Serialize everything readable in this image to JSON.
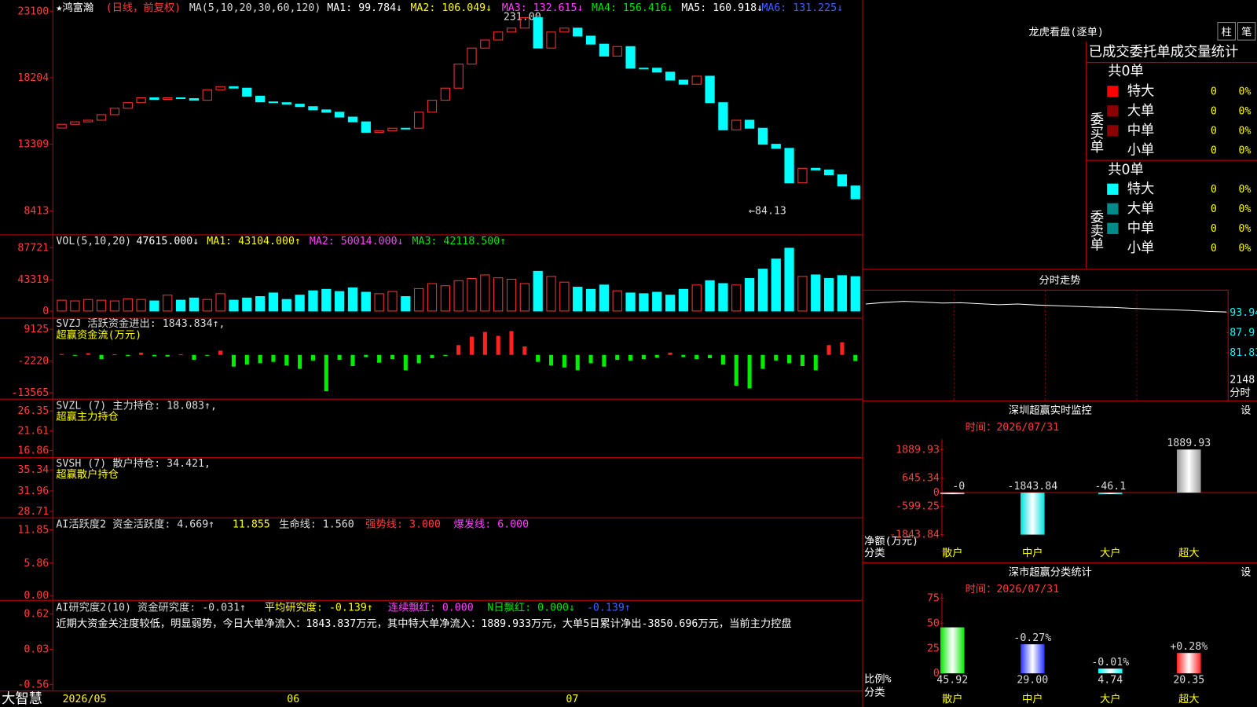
{
  "header": {
    "name": "★鸿富瀚",
    "mode": "(日线，前复权)",
    "ma_params": "MA(5,10,20,30,60,120)",
    "ma": [
      "MA1: 99.784↓",
      "MA2: 106.049↓",
      "MA3: 132.615↓",
      "MA4: 156.416↓",
      "MA5: 160.918↓",
      "MA6: 131.225↓"
    ]
  },
  "price_chart": {
    "ylim": [
      6700,
      23810
    ],
    "yticks": [
      23100,
      18204,
      13309,
      8413
    ],
    "up_color": "#ff3232",
    "down_color": "#00ffff",
    "open": [
      14500,
      14780,
      14960,
      15080,
      15490,
      15960,
      16370,
      16730,
      16610,
      16730,
      16670,
      16550,
      17320,
      17550,
      17440,
      16850,
      16430,
      16370,
      16260,
      16080,
      15840,
      15670,
      15310,
      14960,
      14190,
      14310,
      14490,
      14490,
      15670,
      16550,
      17440,
      19210,
      20390,
      20980,
      21570,
      21860,
      22630,
      20390,
      21570,
      21860,
      21270,
      20680,
      19800,
      20500,
      18910,
      18910,
      18620,
      18030,
      17730,
      18320,
      16370,
      14370,
      15080,
      14490,
      13310,
      13010,
      10470,
      11540,
      11420,
      11060,
      10240
    ],
    "close": [
      14780,
      14960,
      15080,
      15490,
      15960,
      16370,
      16730,
      16610,
      16730,
      16670,
      16550,
      17320,
      17550,
      17440,
      16850,
      16430,
      16370,
      16260,
      16080,
      15840,
      15670,
      15310,
      14960,
      14190,
      14310,
      14490,
      14490,
      15670,
      16550,
      17440,
      19210,
      20390,
      20980,
      21570,
      21860,
      22630,
      20390,
      21570,
      21860,
      21270,
      20680,
      19800,
      20500,
      18910,
      18910,
      18620,
      18030,
      17730,
      18320,
      16370,
      14370,
      15080,
      14490,
      13310,
      13010,
      10470,
      11540,
      11420,
      11060,
      10240,
      9290
    ],
    "annotations": [
      "231.00",
      "←84.13"
    ]
  },
  "volume": {
    "header": [
      "VOL(5,10,20)",
      "47615.000↓",
      "MA1: 43104.000↑",
      "MA2: 50014.000↓",
      "MA3: 42118.500↑"
    ],
    "ylim": [
      0,
      104340
    ],
    "yticks": [
      87721,
      43319,
      0
    ],
    "values": [
      15000,
      14000,
      16000,
      15000,
      14000,
      17000,
      16000,
      14000,
      22000,
      15000,
      18000,
      16000,
      24000,
      15000,
      18000,
      20000,
      25000,
      16000,
      22000,
      28000,
      30000,
      27000,
      32000,
      26000,
      24000,
      27000,
      20000,
      31000,
      38000,
      35000,
      42000,
      45000,
      50000,
      46000,
      44000,
      38000,
      55000,
      48000,
      40000,
      33000,
      30000,
      36000,
      28000,
      25000,
      24000,
      26000,
      22000,
      30000,
      36000,
      42000,
      38000,
      36000,
      45000,
      58000,
      72000,
      87000,
      48000,
      50000,
      45000,
      49000,
      47615
    ]
  },
  "svzj": {
    "header": [
      "SVZJ  活跃资金进出: 1843.834↑,",
      "超赢资金流(万元)"
    ],
    "ylim": [
      -15550,
      12810
    ],
    "yticks": [
      9125,
      -2220,
      -13565
    ],
    "values": [
      300,
      -300,
      600,
      -1500,
      200,
      -400,
      800,
      -500,
      -600,
      200,
      -1800,
      -300,
      1500,
      -4200,
      -3500,
      -3000,
      -2500,
      -3800,
      -5000,
      -2000,
      -13000,
      -1800,
      -4000,
      -800,
      -2800,
      -1500,
      -5500,
      -3000,
      -1200,
      -400,
      3500,
      6500,
      8200,
      6800,
      8500,
      3000,
      -2500,
      -3800,
      -4500,
      -5500,
      -3000,
      -4200,
      -1800,
      -2000,
      -1500,
      -1000,
      800,
      -800,
      -1500,
      -1200,
      -3500,
      -11000,
      -12000,
      -5000,
      -2000,
      -3000,
      -4000,
      -5500,
      3500,
      4500,
      -2200
    ]
  },
  "svzl": {
    "header": [
      "SVZL (7) 主力持仓: 18.083↑,",
      "超赢主力持仓"
    ],
    "ylim": [
      15.34,
      29.0
    ],
    "yticks": [
      26.35,
      21.61,
      16.86
    ]
  },
  "svsh": {
    "header": [
      "SVSH (7) 散户持仓: 34.421,",
      "超赢散户持仓"
    ],
    "ylim": [
      27.82,
      37.13
    ],
    "yticks": [
      35.34,
      31.96,
      28.71
    ]
  },
  "ai_activity": {
    "header": [
      "AI活跃度2 资金活跃度: 4.669↑",
      "11.855",
      "生命线: 1.560",
      "强势线: 3.000",
      "爆发线: 6.000"
    ],
    "ylim": [
      -0.72,
      13.87
    ],
    "yticks": [
      11.85,
      5.86,
      {
        "value": 0,
        "label": "0.00"
      }
    ]
  },
  "ai_research": {
    "header": [
      "AI研究度2(10) 资金研究度: -0.031↑",
      "平均研究度: -0.139↑",
      "连续飘红: 0.000",
      "N日飘红: 0.000↓",
      "-0.139↑"
    ],
    "ylim": [
      -0.654,
      0.835
    ],
    "yticks": [
      0.62,
      0.03,
      -0.56
    ],
    "comment": "近期大资金关注度较低，明显弱势，今日大单净流入：1843.837万元，其中特大单净流入：1889.933万元，大单5日累计净出-3850.696万元，当前主力控盘"
  },
  "x_axis": [
    "大智慧",
    "2026/05",
    "06",
    "07"
  ],
  "order_stats": {
    "title": "龙虎看盘(逐单)",
    "buttons": [
      "柱",
      "笔"
    ],
    "subtitle": "已成交委托单成交量统计",
    "buy": {
      "label": "委买单",
      "total": "共0单",
      "rows": [
        [
          "特大",
          "0",
          "0%"
        ],
        [
          "大单",
          "0",
          "0%"
        ],
        [
          "中单",
          "0",
          "0%"
        ],
        [
          "小单",
          "0",
          "0%"
        ]
      ]
    },
    "sell": {
      "label": "委卖单",
      "total": "共0单",
      "rows": [
        [
          "特大",
          "0",
          "0%"
        ],
        [
          "大单",
          "0",
          "0%"
        ],
        [
          "中单",
          "0",
          "0%"
        ],
        [
          "小单",
          "0",
          "0%"
        ]
      ]
    }
  },
  "minute": {
    "title": "分时走势",
    "ylim": [
      79.9,
      100.2
    ],
    "yticks": [
      93.94,
      87.9,
      81.83
    ],
    "volume_label": "2148",
    "label": "分时",
    "values": [
      96.5,
      97,
      97.3,
      97.1,
      96.8,
      96.9,
      96.6,
      96.3,
      96.5,
      96.2,
      96.0,
      95.8,
      95.6,
      95.5,
      95.2,
      95.0,
      94.8,
      94.6,
      94.3,
      94.1
    ]
  },
  "monitor": {
    "title": "深圳超赢实时监控",
    "button": "设",
    "time": "时间：2026/07/31",
    "ylabel": "净额(万元)",
    "xlabel": "分类",
    "categories": [
      "散户",
      "中户",
      "大户",
      "超大"
    ],
    "values": [
      0,
      -1843.84,
      -46.1,
      1889.93
    ],
    "value_labels": [
      "-0",
      "-1843.84",
      "-46.1",
      "1889.93"
    ],
    "ylim": [
      -1880,
      2200
    ],
    "yticks": [
      1889.93,
      645.34,
      0,
      -599.25,
      -1843.84
    ]
  },
  "classify": {
    "title": "深市超赢分类统计",
    "button": "设",
    "time": "时间：2026/07/31",
    "ylabel": "比例%",
    "xlabel": "分类",
    "categories": [
      "散户",
      "中户",
      "大户",
      "超大"
    ],
    "values": [
      45.92,
      29,
      4.74,
      20.35
    ],
    "value_labels": [
      "45.92",
      "29.00",
      "4.74",
      "20.35"
    ],
    "change_labels": [
      null,
      "-0.27%",
      "-0.01%",
      "+0.28%"
    ],
    "colors": [
      "#00e600",
      "#2030ff",
      "#00ffff",
      "#ff2020"
    ],
    "ylim": [
      0,
      80
    ],
    "yticks": [
      75,
      50,
      25,
      0
    ]
  }
}
